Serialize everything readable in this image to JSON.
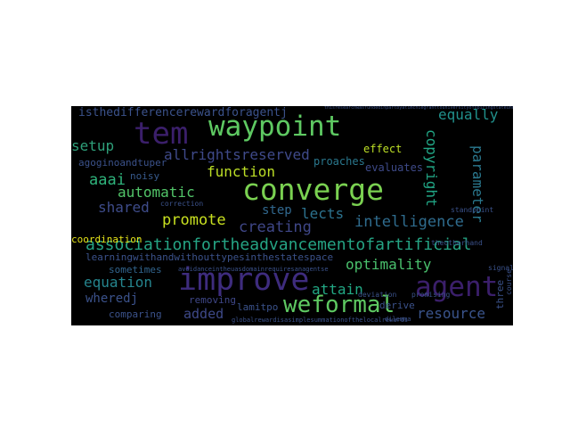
{
  "words": [
    {
      "text": "waypoint",
      "color": "#5ec962"
    },
    {
      "text": "tem",
      "color": "#3b1f6b"
    },
    {
      "text": "converge",
      "color": "#7ad151"
    },
    {
      "text": "improve",
      "color": "#3e2c7e"
    },
    {
      "text": "agent",
      "color": "#3b1f6b"
    },
    {
      "text": "weformal",
      "color": "#5ec962"
    },
    {
      "text": "associationfortheadvancementofartificial",
      "color": "#25a484"
    },
    {
      "text": "isthedifferencerewardforagentj",
      "color": "#3b528b"
    },
    {
      "text": "allrightsreserved",
      "color": "#3f4a8a"
    },
    {
      "text": "equally",
      "color": "#21918c"
    },
    {
      "text": "copyright",
      "color": "#21a685"
    },
    {
      "text": "parameter",
      "color": "#2a788e"
    },
    {
      "text": "setup",
      "color": "#2ea07a"
    },
    {
      "text": "aaai",
      "color": "#2fb47c"
    },
    {
      "text": "function",
      "color": "#bddf26"
    },
    {
      "text": "automatic",
      "color": "#52c569"
    },
    {
      "text": "lects",
      "color": "#2c728e"
    },
    {
      "text": "step",
      "color": "#31688e"
    },
    {
      "text": "shared",
      "color": "#3e4c8a"
    },
    {
      "text": "promote",
      "color": "#c8e020"
    },
    {
      "text": "creating",
      "color": "#3f4788"
    },
    {
      "text": "intelligence",
      "color": "#2f6c8e"
    },
    {
      "text": "optimality",
      "color": "#4ac16d"
    },
    {
      "text": "equation",
      "color": "#25858e"
    },
    {
      "text": "attain",
      "color": "#22a884"
    },
    {
      "text": "resource",
      "color": "#3a548c"
    },
    {
      "text": "added",
      "color": "#3e4989"
    },
    {
      "text": "wheredj",
      "color": "#3b528b"
    },
    {
      "text": "effect",
      "color": "#bddf26"
    },
    {
      "text": "proaches",
      "color": "#2a788e"
    },
    {
      "text": "evaluates",
      "color": "#3e4a89"
    },
    {
      "text": "agoginoandtuper",
      "color": "#3b528b"
    },
    {
      "text": "noisy",
      "color": "#375a8c"
    },
    {
      "text": "coordination",
      "color": "#e5e419"
    },
    {
      "text": "learningwithandwithouttypesinthestatespace",
      "color": "#3b528b"
    },
    {
      "text": "sometimes",
      "color": "#32658e"
    },
    {
      "text": "comparing",
      "color": "#3b528b"
    },
    {
      "text": "removing",
      "color": "#3f4788"
    },
    {
      "text": "lamitpo",
      "color": "#3b528b"
    },
    {
      "text": "derive",
      "color": "#3b528b"
    },
    {
      "text": "globalrewardisasimplesummationofthelocalrewards",
      "color": "#3b528b"
    },
    {
      "text": "signal",
      "color": "#3b528b"
    },
    {
      "text": "standpoint",
      "color": "#3b528b"
    },
    {
      "text": "promising",
      "color": "#3b528b"
    },
    {
      "text": "deviation",
      "color": "#3b528b"
    },
    {
      "text": "three",
      "color": "#3b528b"
    },
    {
      "text": "course",
      "color": "#3b528b"
    },
    {
      "text": "correction",
      "color": "#3b528b"
    },
    {
      "text": "avoidanceintheuasdomainrequiresanagentse",
      "color": "#3b528b"
    },
    {
      "text": "thisresearchwasfundedinpartbyatimchiegranttouniversityofspiringstateunderindustriesrefund",
      "color": "#3b528b"
    },
    {
      "text": "theotherhand",
      "color": "#3b528b"
    },
    {
      "text": "dilemma",
      "color": "#3b528b"
    }
  ]
}
